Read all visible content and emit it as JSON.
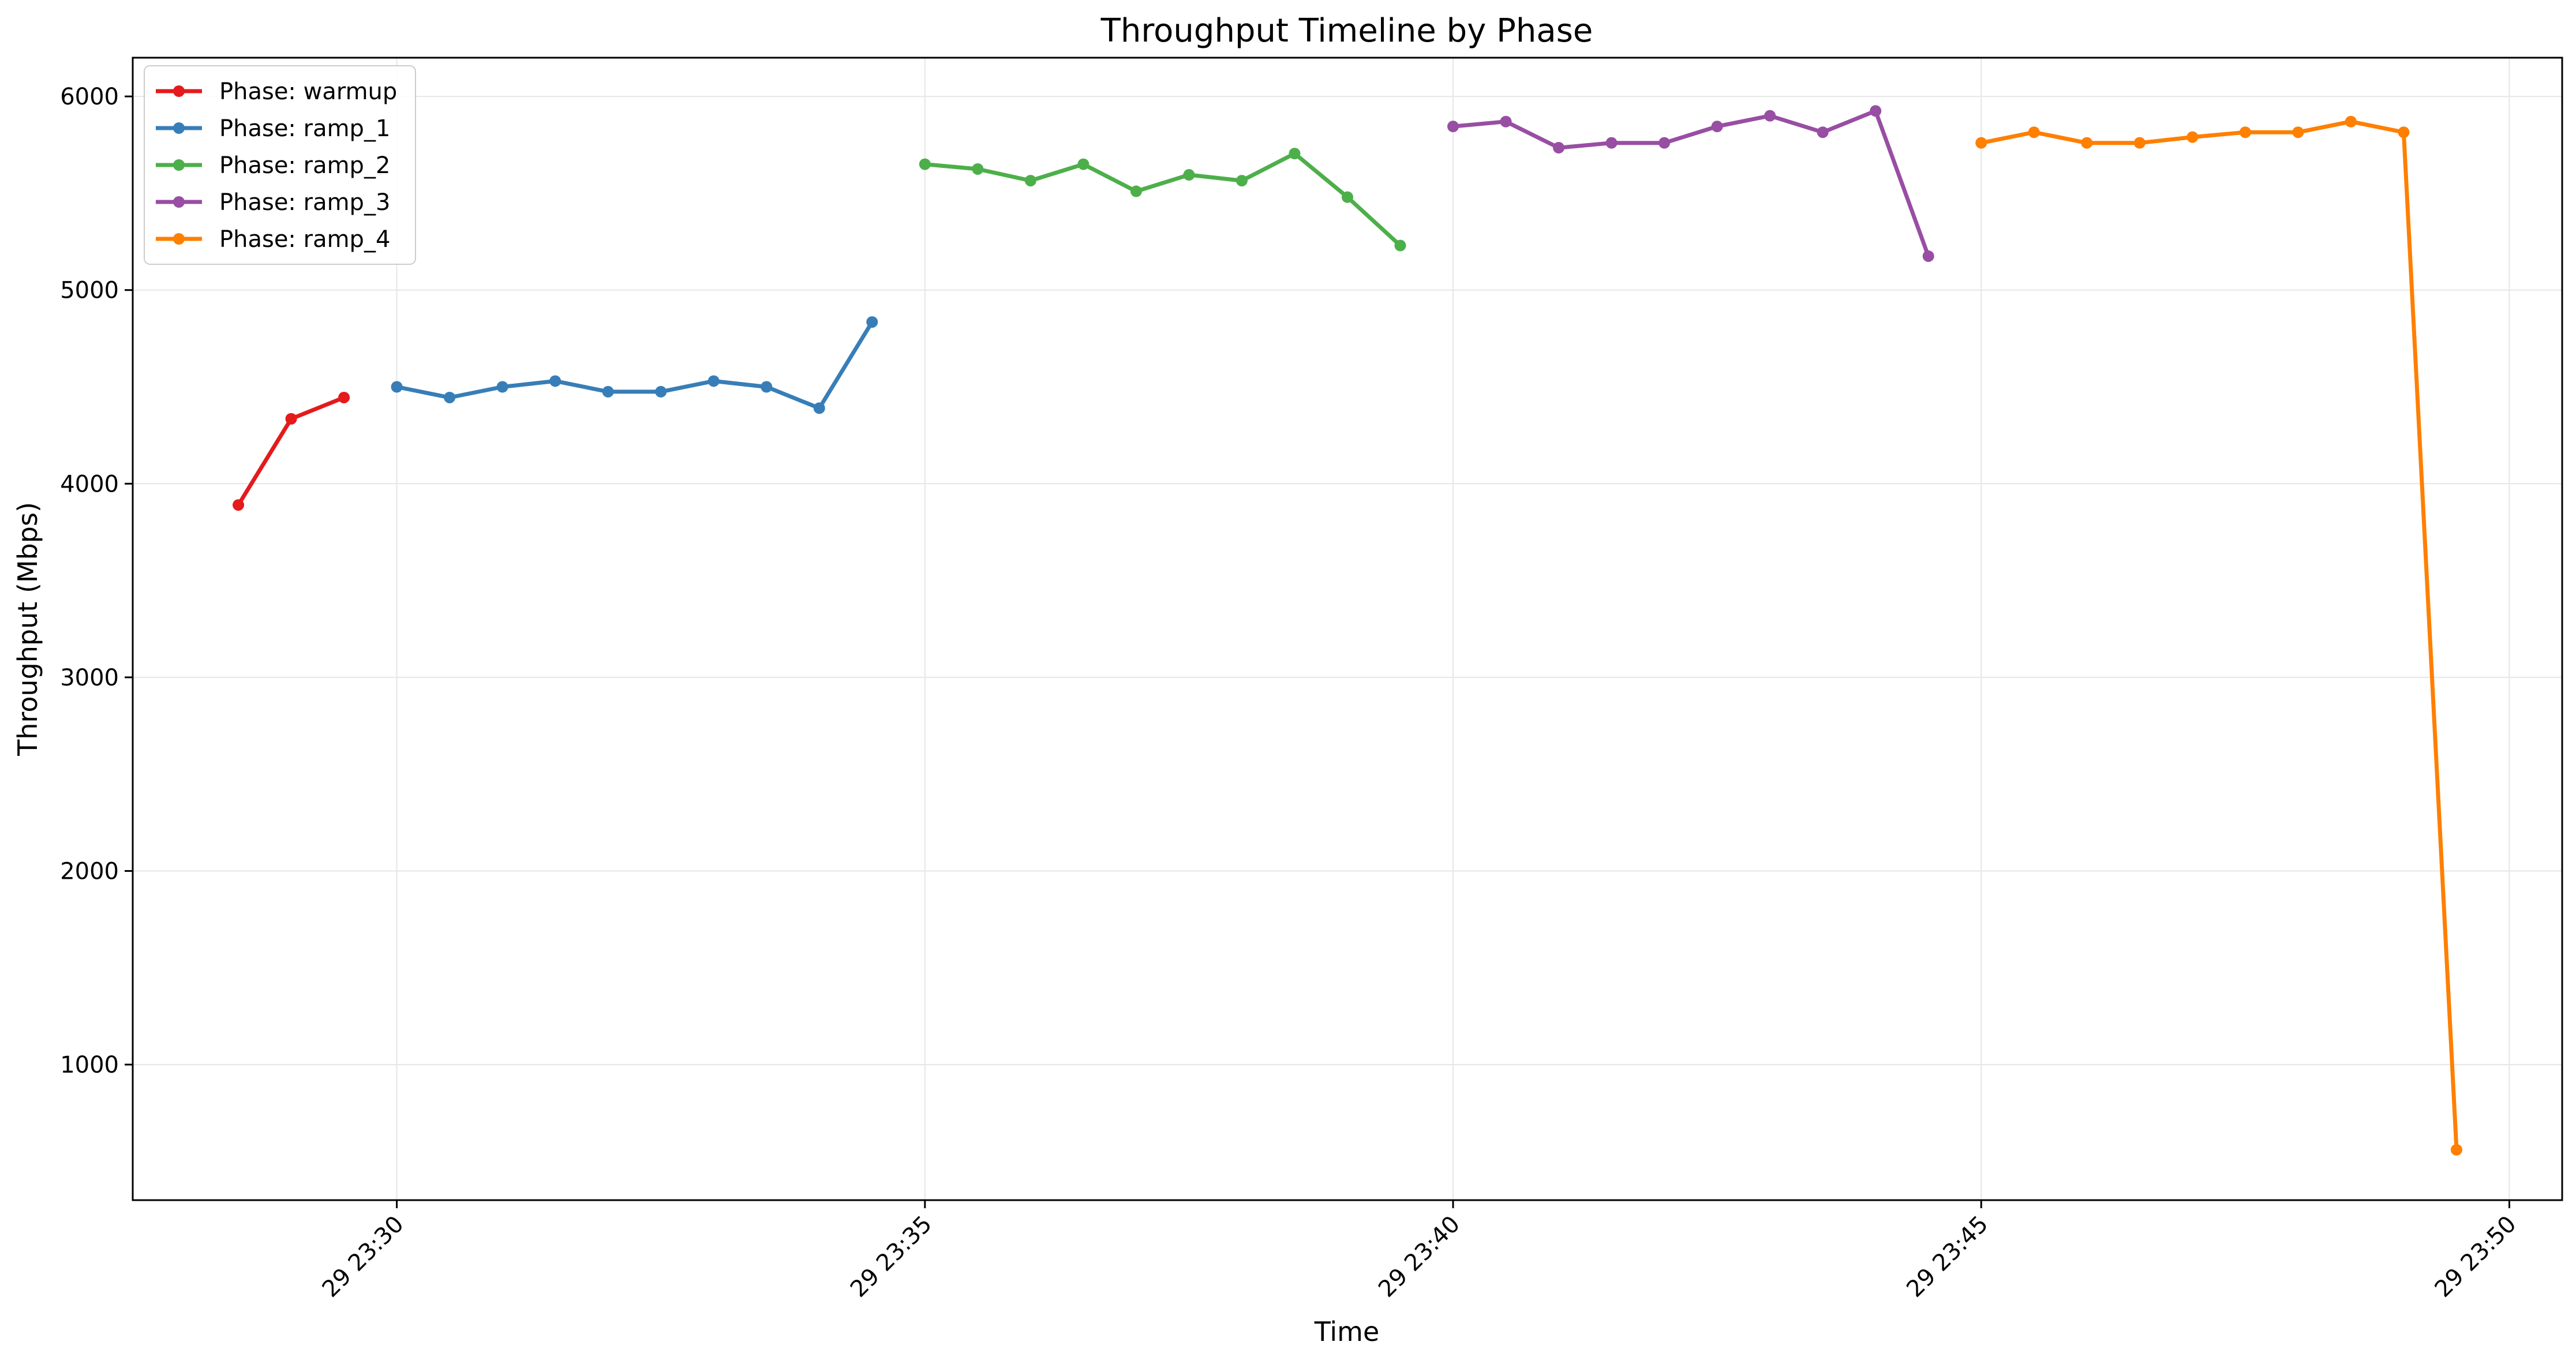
{
  "chart_data": {
    "type": "line",
    "title": "Throughput Timeline by Phase",
    "xlabel": "Time",
    "ylabel": "Throughput (Mbps)",
    "ylim": [
      300,
      6200
    ],
    "xlim": [
      "23:27:30",
      "23:50:30"
    ],
    "grid": true,
    "legend_position": "top-left",
    "x_ticks": [
      {
        "t": "23:30:00",
        "label": "29 23:30"
      },
      {
        "t": "23:35:00",
        "label": "29 23:35"
      },
      {
        "t": "23:40:00",
        "label": "29 23:40"
      },
      {
        "t": "23:45:00",
        "label": "29 23:45"
      },
      {
        "t": "23:50:00",
        "label": "29 23:50"
      }
    ],
    "y_ticks": [
      1000,
      2000,
      3000,
      4000,
      5000,
      6000
    ],
    "series": [
      {
        "name": "Phase: warmup",
        "color": "#e41a1c",
        "x": [
          "23:28:30",
          "23:29:00",
          "23:29:30"
        ],
        "y": [
          3890,
          4335,
          4445
        ]
      },
      {
        "name": "Phase: ramp_1",
        "color": "#377eb8",
        "x": [
          "23:30:00",
          "23:30:30",
          "23:31:00",
          "23:31:30",
          "23:32:00",
          "23:32:30",
          "23:33:00",
          "23:33:30",
          "23:34:00",
          "23:34:30"
        ],
        "y": [
          4500,
          4445,
          4500,
          4530,
          4475,
          4475,
          4530,
          4500,
          4390,
          4835
        ]
      },
      {
        "name": "Phase: ramp_2",
        "color": "#4daf4a",
        "x": [
          "23:35:00",
          "23:35:30",
          "23:36:00",
          "23:36:30",
          "23:37:00",
          "23:37:30",
          "23:38:00",
          "23:38:30",
          "23:39:00",
          "23:39:30"
        ],
        "y": [
          5650,
          5625,
          5565,
          5650,
          5510,
          5595,
          5565,
          5705,
          5480,
          5230
        ]
      },
      {
        "name": "Phase: ramp_3",
        "color": "#984ea3",
        "x": [
          "23:40:00",
          "23:40:30",
          "23:41:00",
          "23:41:30",
          "23:42:00",
          "23:42:30",
          "23:43:00",
          "23:43:30",
          "23:44:00",
          "23:44:30"
        ],
        "y": [
          5845,
          5870,
          5735,
          5760,
          5760,
          5845,
          5900,
          5815,
          5925,
          5175
        ]
      },
      {
        "name": "Phase: ramp_4",
        "color": "#ff7f00",
        "x": [
          "23:45:00",
          "23:45:30",
          "23:46:00",
          "23:46:30",
          "23:47:00",
          "23:47:30",
          "23:48:00",
          "23:48:30",
          "23:49:00",
          "23:49:30"
        ],
        "y": [
          5760,
          5815,
          5760,
          5760,
          5790,
          5815,
          5815,
          5870,
          5815,
          560
        ]
      }
    ]
  }
}
